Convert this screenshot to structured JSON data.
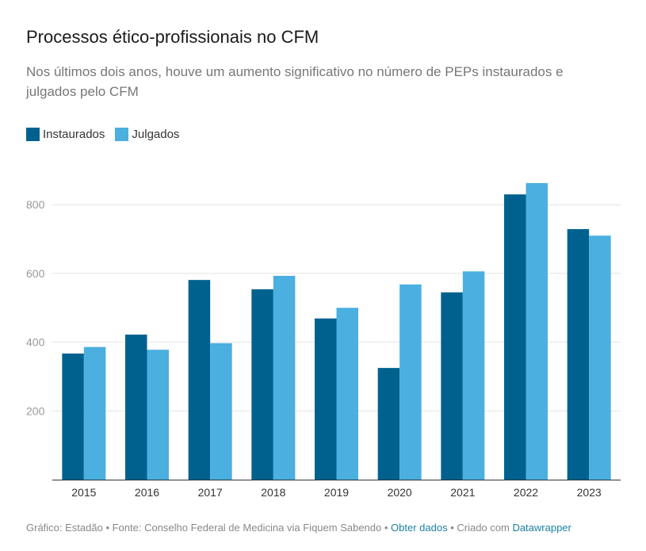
{
  "header": {
    "title": "Processos ético-profissionais no CFM",
    "subtitle": "Nos últimos dois anos, houve um aumento significativo no número de PEPs instaurados e julgados pelo CFM"
  },
  "legend": {
    "items": [
      {
        "label": "Instaurados",
        "color": "#00618f"
      },
      {
        "label": "Julgados",
        "color": "#4bafe0"
      }
    ]
  },
  "chart_data": {
    "type": "bar",
    "categories": [
      "2015",
      "2016",
      "2017",
      "2018",
      "2019",
      "2020",
      "2021",
      "2022",
      "2023"
    ],
    "series": [
      {
        "name": "Instaurados",
        "color": "#00618f",
        "values": [
          367,
          422,
          581,
          554,
          469,
          325,
          545,
          830,
          729
        ]
      },
      {
        "name": "Julgados",
        "color": "#4bafe0",
        "values": [
          386,
          378,
          397,
          593,
          500,
          568,
          606,
          863,
          710
        ]
      }
    ],
    "yticks": [
      200,
      400,
      600,
      800
    ],
    "ylim": [
      0,
      900
    ],
    "grid": true,
    "legend_position": "top-left"
  },
  "footer": {
    "prefix": "Gráfico: Estadão • Fonte: Conselho Federal de Medicina via Fiquem Sabendo • ",
    "data_link": "Obter dados",
    "middle": " • Criado com ",
    "tool_link": "Datawrapper"
  }
}
